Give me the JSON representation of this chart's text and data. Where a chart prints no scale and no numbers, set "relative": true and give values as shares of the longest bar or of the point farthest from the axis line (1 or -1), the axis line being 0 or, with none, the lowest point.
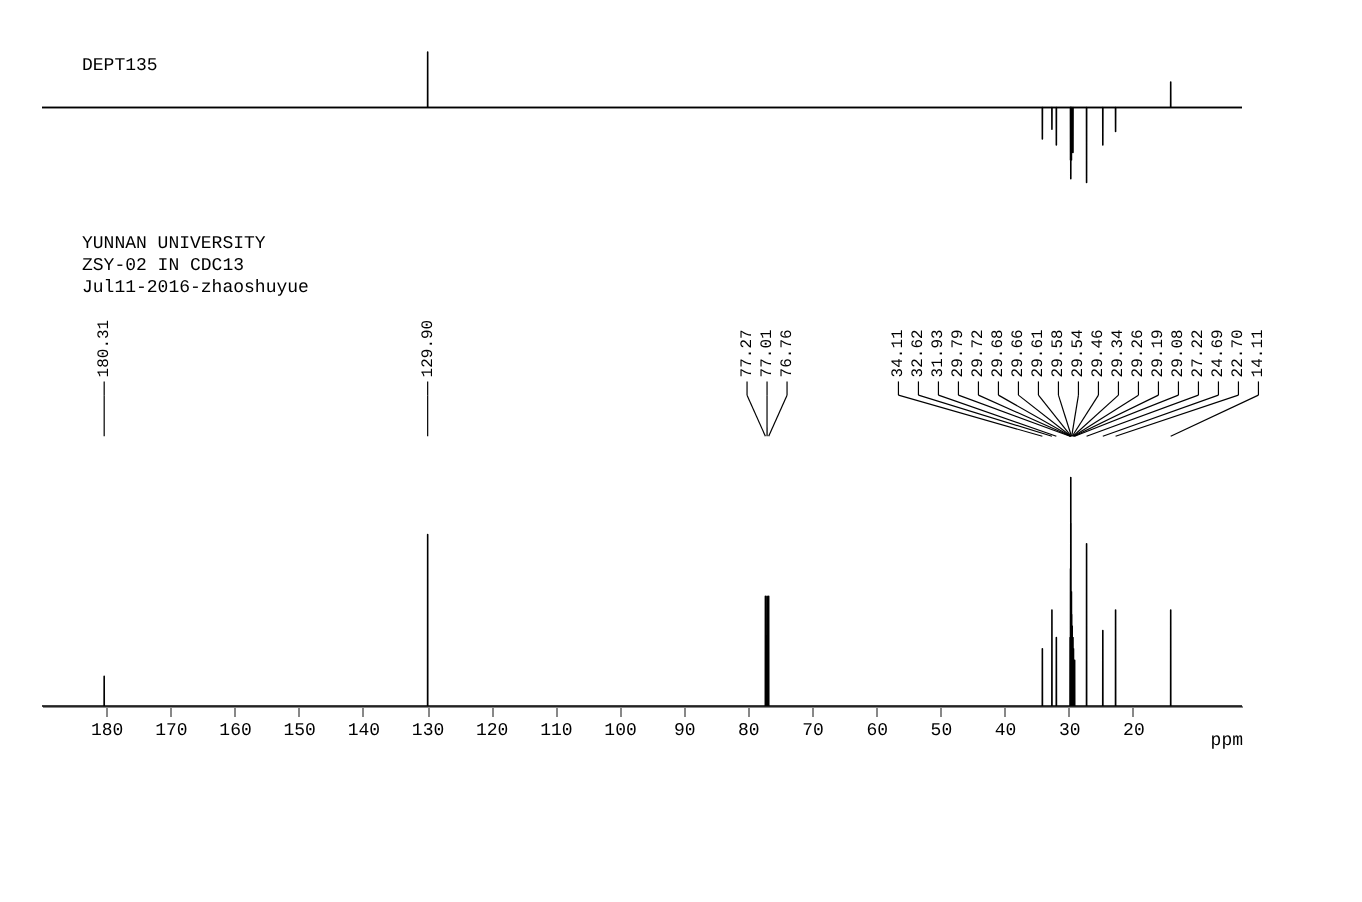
{
  "chart_data": [
    {
      "type": "line",
      "title": "DEPT135",
      "relative": true,
      "xlim": [
        190,
        3
      ],
      "tick_labels": false,
      "grid": false,
      "legend": false,
      "marker": "none",
      "line_style": "solid",
      "series": [
        {
          "color": "#000000",
          "x": [
            190,
            129.91,
            129.9,
            129.89,
            34.12,
            34.11,
            34.1,
            32.63,
            32.62,
            32.61,
            31.94,
            31.93,
            31.92,
            29.73,
            29.72,
            29.71,
            29.69,
            29.68,
            29.67,
            29.59,
            29.58,
            29.57,
            29.35,
            29.34,
            29.33,
            27.23,
            27.22,
            27.21,
            24.7,
            24.69,
            24.68,
            22.71,
            22.7,
            22.69,
            14.12,
            14.11,
            14.1,
            3
          ],
          "values": [
            0,
            0,
            0.74,
            0,
            0,
            -0.42,
            0,
            0,
            -0.29,
            0,
            0,
            -0.5,
            0,
            0,
            -0.7,
            0,
            0,
            -0.95,
            0,
            0,
            -0.7,
            0,
            0,
            -0.6,
            0,
            0,
            -1,
            0,
            0,
            -0.5,
            0,
            0,
            -0.32,
            0,
            0,
            0.34,
            0,
            0
          ]
        }
      ]
    },
    {
      "type": "line",
      "relative": true,
      "xlim": [
        190,
        3
      ],
      "xlabel": "ppm",
      "grid": false,
      "legend": false,
      "marker": "none",
      "line_style": "solid",
      "xticks": [
        180,
        170,
        160,
        150,
        140,
        130,
        120,
        110,
        100,
        90,
        80,
        70,
        60,
        50,
        40,
        30,
        20
      ],
      "annotations": [
        "YUNNAN UNIVERSITY",
        "ZSY-02 IN CDC13",
        "Jul11-2016-zhaoshuyue",
        {
          "text": "180.31",
          "x": 180.31
        },
        {
          "text": "129.90",
          "x": 129.9
        },
        {
          "text": "77.27",
          "x": 77.27
        },
        {
          "text": "77.01",
          "x": 77.01
        },
        {
          "text": "76.76",
          "x": 76.76
        },
        {
          "text": "34.11",
          "x": 34.11
        },
        {
          "text": "32.62",
          "x": 32.62
        },
        {
          "text": "31.93",
          "x": 31.93
        },
        {
          "text": "29.79",
          "x": 29.79
        },
        {
          "text": "29.72",
          "x": 29.72
        },
        {
          "text": "29.68",
          "x": 29.68
        },
        {
          "text": "29.66",
          "x": 29.66
        },
        {
          "text": "29.61",
          "x": 29.61
        },
        {
          "text": "29.58",
          "x": 29.58
        },
        {
          "text": "29.54",
          "x": 29.54
        },
        {
          "text": "29.46",
          "x": 29.46
        },
        {
          "text": "29.34",
          "x": 29.34
        },
        {
          "text": "29.26",
          "x": 29.26
        },
        {
          "text": "29.19",
          "x": 29.19
        },
        {
          "text": "29.08",
          "x": 29.08
        },
        {
          "text": "27.22",
          "x": 27.22
        },
        {
          "text": "24.69",
          "x": 24.69
        },
        {
          "text": "22.70",
          "x": 22.7
        },
        {
          "text": "14.11",
          "x": 14.11
        }
      ],
      "series": [
        {
          "color": "#000000",
          "x": [
            190,
            180.32,
            180.31,
            180.3,
            129.91,
            129.9,
            129.89,
            77.28,
            77.27,
            77.26,
            77.02,
            77.01,
            77.0,
            76.77,
            76.76,
            76.75,
            34.12,
            34.11,
            34.1,
            32.63,
            32.62,
            32.61,
            31.94,
            31.93,
            31.92,
            29.8,
            29.79,
            29.78,
            29.73,
            29.72,
            29.71,
            29.69,
            29.68,
            29.67,
            29.67,
            29.66,
            29.65,
            29.62,
            29.61,
            29.6,
            29.59,
            29.58,
            29.57,
            29.55,
            29.54,
            29.53,
            29.47,
            29.46,
            29.45,
            29.35,
            29.34,
            29.33,
            29.27,
            29.26,
            29.25,
            29.2,
            29.19,
            29.18,
            29.09,
            29.08,
            29.07,
            27.23,
            27.22,
            27.21,
            24.7,
            24.69,
            24.68,
            22.71,
            22.7,
            22.69,
            14.12,
            14.11,
            14.1,
            3
          ],
          "values": [
            0,
            0,
            0.13,
            0,
            0,
            0.75,
            0,
            0,
            0.48,
            0,
            0,
            0.48,
            0,
            0,
            0.48,
            0,
            0,
            0.25,
            0,
            0,
            0.42,
            0,
            0,
            0.3,
            0,
            0,
            0.3,
            0,
            0,
            0.6,
            0,
            0,
            1,
            0,
            0,
            0.8,
            0,
            0,
            0.5,
            0,
            0,
            0.5,
            0,
            0,
            0.4,
            0,
            0,
            0.35,
            0,
            0,
            0.3,
            0,
            0,
            0.25,
            0,
            0,
            0.2,
            0,
            0,
            0.2,
            0,
            0,
            0.71,
            0,
            0,
            0.33,
            0,
            0,
            0.42,
            0,
            0,
            0.42,
            0,
            0
          ]
        }
      ]
    }
  ]
}
